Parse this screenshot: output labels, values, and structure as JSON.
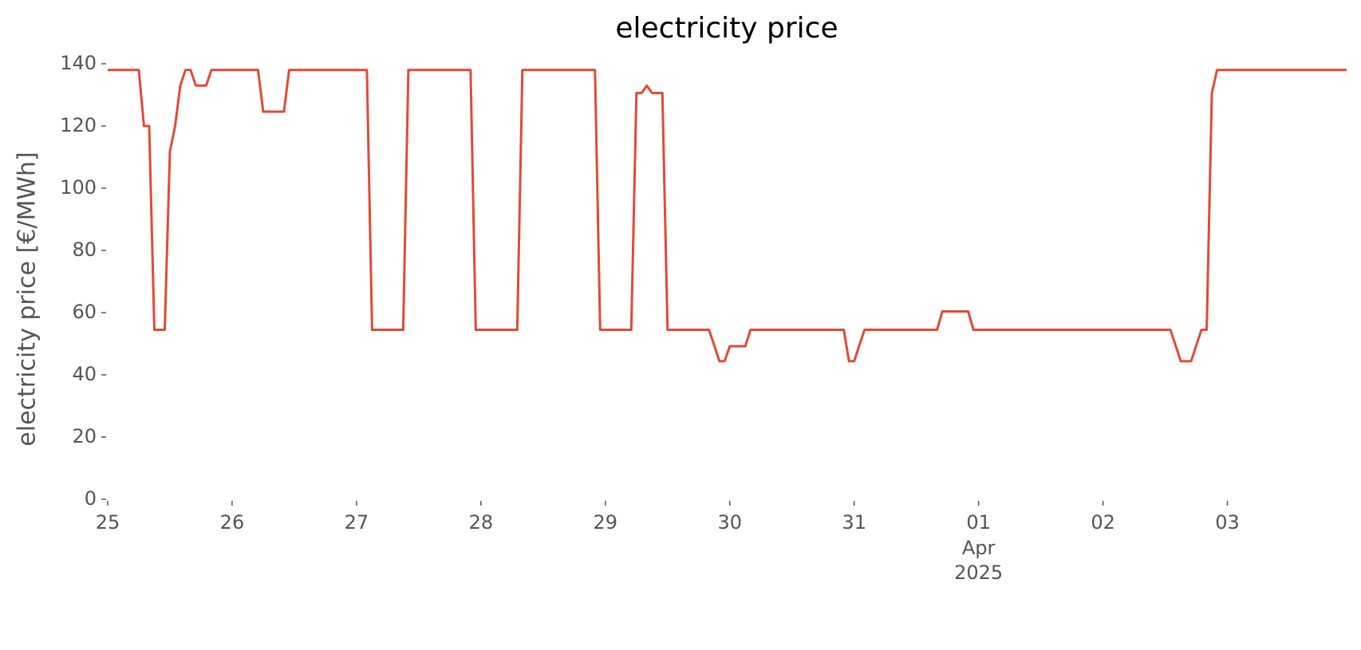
{
  "chart_data": {
    "type": "line",
    "title": "electricity price",
    "ylabel": "electricity price [€/MWh]",
    "x": [
      0,
      1,
      2,
      3,
      4,
      5,
      6,
      7,
      8,
      9,
      10,
      11,
      12,
      13,
      14,
      15,
      16,
      17,
      18,
      19,
      20,
      21,
      22,
      23,
      24,
      25,
      26,
      27,
      28,
      29,
      30,
      31,
      32,
      33,
      34,
      35,
      36,
      37,
      38,
      39,
      40,
      41,
      42,
      43,
      44,
      45,
      46,
      47,
      48,
      49,
      50,
      51,
      52,
      53,
      54,
      55,
      56,
      57,
      58,
      59,
      60,
      61,
      62,
      63,
      64,
      65,
      66,
      67,
      68,
      69,
      70,
      71,
      72,
      73,
      74,
      75,
      76,
      77,
      78,
      79,
      80,
      81,
      82,
      83,
      84,
      85,
      86,
      87,
      88,
      89,
      90,
      91,
      92,
      93,
      94,
      95,
      96,
      97,
      98,
      99,
      100,
      101,
      102,
      103,
      104,
      105,
      106,
      107,
      108,
      109,
      110,
      111,
      112,
      113,
      114,
      115,
      116,
      117,
      118,
      119,
      120,
      121,
      122,
      123,
      124,
      125,
      126,
      127,
      128,
      129,
      130,
      131,
      132,
      133,
      134,
      135,
      136,
      137,
      138,
      139,
      140,
      141,
      142,
      143,
      144,
      145,
      146,
      147,
      148,
      149,
      150,
      151,
      152,
      153,
      154,
      155,
      156,
      157,
      158,
      159,
      160,
      161,
      162,
      163,
      164,
      165,
      166,
      167,
      168,
      169,
      170,
      171,
      172,
      173,
      174,
      175,
      176,
      177,
      178,
      179,
      180,
      181,
      182,
      183,
      184,
      185,
      186,
      187,
      188,
      189,
      190,
      191,
      192,
      193,
      194,
      195,
      196,
      197,
      198,
      199,
      200,
      201,
      202,
      203,
      204,
      205,
      206,
      207,
      208,
      209,
      210,
      211,
      212,
      213,
      214,
      215,
      216,
      217,
      218,
      219,
      220,
      221,
      222,
      223,
      224,
      225,
      226,
      227,
      228,
      229,
      230,
      231,
      232,
      233,
      234,
      235,
      236,
      237,
      238,
      239
    ],
    "series": [
      {
        "name": "electricity price",
        "color": "#e24a33",
        "values": [
          138,
          138,
          138,
          138,
          138,
          138,
          138,
          120,
          120,
          54.5,
          54.5,
          54.5,
          111.8,
          120,
          133,
          138,
          138,
          133,
          133,
          133,
          138,
          138,
          138,
          138,
          138,
          138,
          138,
          138,
          138,
          138,
          124.6,
          124.6,
          124.6,
          124.6,
          124.6,
          138,
          138,
          138,
          138,
          138,
          138,
          138,
          138,
          138,
          138,
          138,
          138,
          138,
          138,
          138,
          138,
          54.5,
          54.5,
          54.5,
          54.5,
          54.5,
          54.5,
          54.5,
          138,
          138,
          138,
          138,
          138,
          138,
          138,
          138,
          138,
          138,
          138,
          138,
          138,
          54.5,
          54.5,
          54.5,
          54.5,
          54.5,
          54.5,
          54.5,
          54.5,
          54.5,
          138,
          138,
          138,
          138,
          138,
          138,
          138,
          138,
          138,
          138,
          138,
          138,
          138,
          138,
          138,
          54.5,
          54.5,
          54.5,
          54.5,
          54.5,
          54.5,
          54.5,
          130.6,
          130.6,
          133,
          130.6,
          130.6,
          130.6,
          54.5,
          54.5,
          54.5,
          54.5,
          54.5,
          54.5,
          54.5,
          54.5,
          54.5,
          49.5,
          44.4,
          44.4,
          49.2,
          49.2,
          49.2,
          49.2,
          54.5,
          54.5,
          54.5,
          54.5,
          54.5,
          54.5,
          54.5,
          54.5,
          54.5,
          54.5,
          54.5,
          54.5,
          54.5,
          54.5,
          54.5,
          54.5,
          54.5,
          54.5,
          54.5,
          44.4,
          44.4,
          49.5,
          54.5,
          54.5,
          54.5,
          54.5,
          54.5,
          54.5,
          54.5,
          54.5,
          54.5,
          54.5,
          54.5,
          54.5,
          54.5,
          54.5,
          54.5,
          60.4,
          60.4,
          60.4,
          60.4,
          60.4,
          60.4,
          54.5,
          54.5,
          54.5,
          54.5,
          54.5,
          54.5,
          54.5,
          54.5,
          54.5,
          54.5,
          54.5,
          54.5,
          54.5,
          54.5,
          54.5,
          54.5,
          54.5,
          54.5,
          54.5,
          54.5,
          54.5,
          54.5,
          54.5,
          54.5,
          54.5,
          54.5,
          54.5,
          54.5,
          54.5,
          54.5,
          54.5,
          54.5,
          54.5,
          54.5,
          54.5,
          54.5,
          54.5,
          54.5,
          54.5,
          49.5,
          44.4,
          44.4,
          44.4,
          49.5,
          54.5,
          54.5,
          130.6,
          138,
          138,
          138,
          138,
          138,
          138,
          138,
          138,
          138,
          138,
          138,
          138,
          138,
          138,
          138,
          138,
          138,
          138,
          138,
          138,
          138,
          138,
          138,
          138,
          138,
          138
        ]
      }
    ],
    "xlim": [
      0,
      239
    ],
    "xticks": [
      {
        "value": 0,
        "label": "25"
      },
      {
        "value": 24,
        "label": "26"
      },
      {
        "value": 48,
        "label": "27"
      },
      {
        "value": 72,
        "label": "28"
      },
      {
        "value": 96,
        "label": "29"
      },
      {
        "value": 120,
        "label": "30"
      },
      {
        "value": 144,
        "label": "31"
      },
      {
        "value": 168,
        "label": "01"
      },
      {
        "value": 192,
        "label": "02"
      },
      {
        "value": 216,
        "label": "03"
      }
    ],
    "x_month": "Apr",
    "x_year": "2025",
    "ylim": [
      0,
      140
    ],
    "yticks": [
      0,
      20,
      40,
      60,
      80,
      100,
      120,
      140
    ],
    "grid": false
  }
}
